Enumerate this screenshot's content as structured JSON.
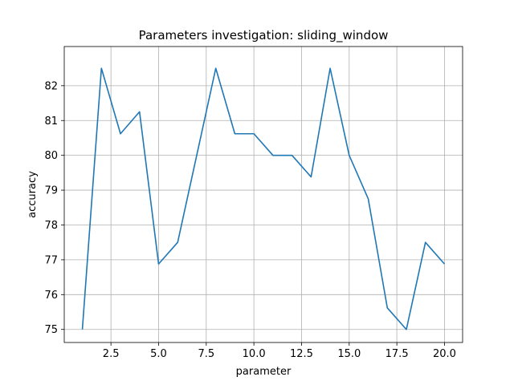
{
  "chart_data": {
    "type": "line",
    "title": "Parameters investigation: sliding_window",
    "xlabel": "parameter",
    "ylabel": "accuracy",
    "xlim": [
      0.05,
      20.95
    ],
    "ylim": [
      74.625,
      83.125
    ],
    "grid": true,
    "xticks": [
      2.5,
      5.0,
      7.5,
      10.0,
      12.5,
      15.0,
      17.5,
      20.0
    ],
    "xtick_labels": [
      "2.5",
      "5.0",
      "7.5",
      "10.0",
      "12.5",
      "15.0",
      "17.5",
      "20.0"
    ],
    "yticks": [
      75,
      76,
      77,
      78,
      79,
      80,
      81,
      82
    ],
    "ytick_labels": [
      "75",
      "76",
      "77",
      "78",
      "79",
      "80",
      "81",
      "82"
    ],
    "line_color": "#1f77b4",
    "series": [
      {
        "x": [
          1,
          2,
          3,
          4,
          5,
          6,
          7,
          8,
          9,
          10,
          11,
          12,
          13,
          14,
          15,
          16,
          17,
          18,
          19,
          20
        ],
        "values": [
          75.0,
          82.5,
          80.62,
          81.25,
          76.88,
          77.5,
          80.0,
          82.5,
          80.62,
          80.62,
          80.0,
          80.0,
          79.38,
          82.5,
          80.0,
          78.75,
          75.62,
          75.0,
          77.5,
          76.88
        ]
      }
    ]
  }
}
